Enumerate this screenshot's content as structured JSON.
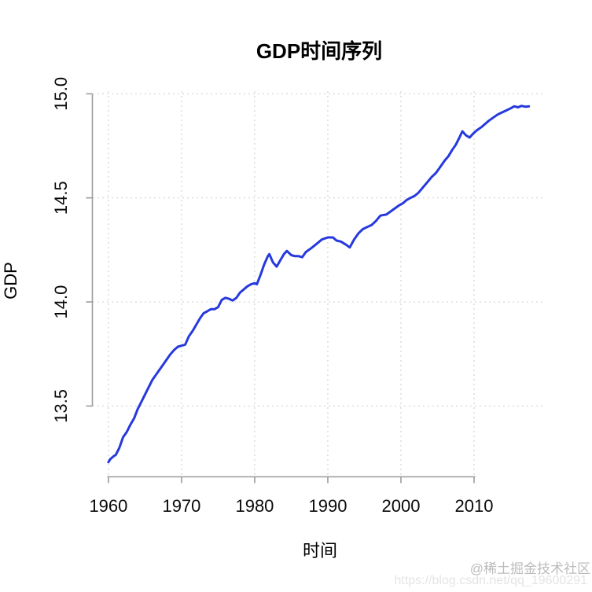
{
  "page": {
    "background": "#ffffff"
  },
  "watermark": {
    "community": "@稀土掘金技术社区",
    "community_color": "#bcbcbc",
    "url": "https://blog.csdn.net/qq_19600291",
    "url_color": "#e4e4e4"
  },
  "chart_data": {
    "type": "line",
    "title": "GDP时间序列",
    "xlabel": "时间",
    "ylabel": "GDP",
    "x_ticks": {
      "values": [
        1960,
        1970,
        1980,
        1990,
        2000,
        2010
      ],
      "labels": [
        "1960",
        "1970",
        "1980",
        "1990",
        "2000",
        "2010"
      ]
    },
    "y_ticks": {
      "values": [
        13.5,
        14.0,
        14.5,
        15.0
      ],
      "labels": [
        "13.5",
        "14.0",
        "14.5",
        "15.0"
      ]
    },
    "xlim": [
      1957.75,
      2020.0
    ],
    "ylim": [
      13.158,
      15.02
    ],
    "grid": true,
    "grid_color": "#d3d3d3",
    "grid_style": "dotted",
    "axis_color": "#9c9c9c",
    "line_color": "#2639dd",
    "line_width": 3,
    "legend_position": "none",
    "series": [
      {
        "name": "GDP",
        "x": [
          1960,
          1960.25,
          1960.75,
          1961,
          1961.5,
          1962,
          1962.5,
          1963,
          1963.5,
          1964,
          1964.5,
          1965,
          1965.5,
          1966,
          1966.5,
          1967,
          1967.5,
          1968,
          1968.5,
          1969,
          1969.5,
          1970,
          1970.5,
          1971,
          1971.5,
          1972,
          1972.5,
          1973,
          1973.5,
          1974,
          1974.5,
          1975,
          1975.5,
          1976,
          1976.5,
          1977,
          1977.5,
          1978,
          1978.5,
          1979,
          1979.5,
          1980,
          1980.3,
          1980.8,
          1981.3,
          1981.8,
          1982,
          1982.5,
          1983,
          1983.5,
          1984,
          1984.4,
          1985,
          1985.5,
          1986,
          1986.5,
          1987,
          1987.8,
          1988.5,
          1989.2,
          1990,
          1990.7,
          1991.2,
          1991.8,
          1992.5,
          1993,
          1993.6,
          1994.2,
          1994.8,
          1995.4,
          1996,
          1996.6,
          1997.2,
          1998,
          1998.6,
          1999.2,
          1999.8,
          2000.3,
          2000.8,
          2001.3,
          2001.9,
          2002.4,
          2003,
          2003.6,
          2004.2,
          2004.8,
          2005.4,
          2006,
          2006.5,
          2007,
          2007.5,
          2008,
          2008.4,
          2008.9,
          2009.4,
          2009.9,
          2010.4,
          2011,
          2011.5,
          2012,
          2012.6,
          2013.2,
          2013.8,
          2014.4,
          2015,
          2015.5,
          2016,
          2016.5,
          2017,
          2017.5
        ],
        "y": [
          13.23,
          13.245,
          13.26,
          13.265,
          13.3,
          13.35,
          13.375,
          13.41,
          13.44,
          13.485,
          13.52,
          13.555,
          13.59,
          13.625,
          13.65,
          13.675,
          13.7,
          13.725,
          13.75,
          13.77,
          13.785,
          13.79,
          13.795,
          13.835,
          13.86,
          13.89,
          13.92,
          13.945,
          13.955,
          13.965,
          13.965,
          13.975,
          14.01,
          14.02,
          14.015,
          14.007,
          14.02,
          14.045,
          14.06,
          14.075,
          14.085,
          14.09,
          14.085,
          14.13,
          14.18,
          14.22,
          14.23,
          14.19,
          14.17,
          14.2,
          14.23,
          14.245,
          14.225,
          14.22,
          14.22,
          14.215,
          14.24,
          14.26,
          14.28,
          14.3,
          14.31,
          14.31,
          14.295,
          14.29,
          14.275,
          14.262,
          14.3,
          14.33,
          14.35,
          14.36,
          14.37,
          14.39,
          14.415,
          14.42,
          14.435,
          14.45,
          14.465,
          14.475,
          14.49,
          14.5,
          14.51,
          14.525,
          14.55,
          14.575,
          14.6,
          14.62,
          14.65,
          14.68,
          14.7,
          14.73,
          14.755,
          14.79,
          14.82,
          14.8,
          14.79,
          14.81,
          14.825,
          14.84,
          14.855,
          14.87,
          14.885,
          14.9,
          14.91,
          14.92,
          14.93,
          14.94,
          14.935,
          14.942,
          14.938,
          14.94
        ]
      }
    ]
  }
}
